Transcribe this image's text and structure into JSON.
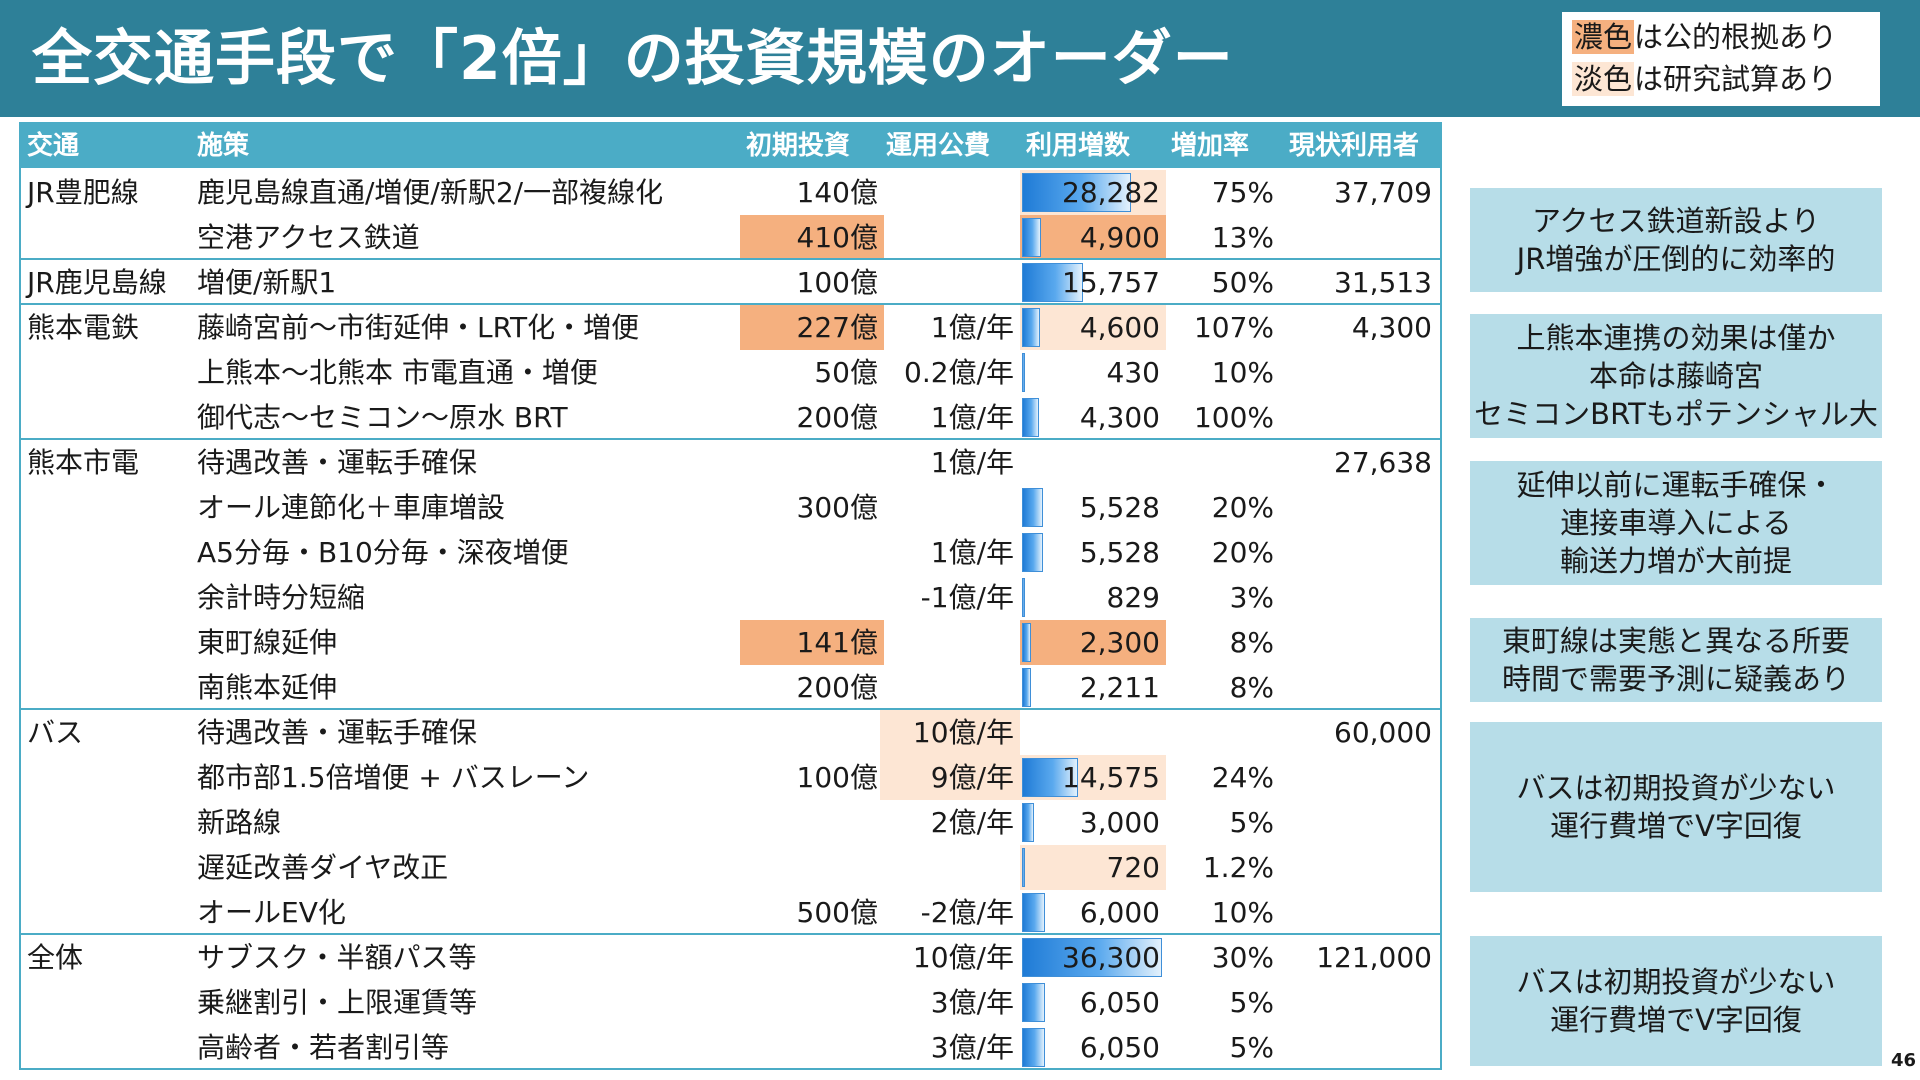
{
  "header": {
    "title": "全交通手段で「2倍」の投資規模のオーダー"
  },
  "legend": {
    "line1_key": "濃色",
    "line1_text": "は公的根拠あり",
    "line2_key": "淡色",
    "line2_text": "は研究試算あり"
  },
  "table": {
    "columns": {
      "mode": "交通",
      "policy": "施策",
      "initial": "初期投資",
      "operating": "運用公費",
      "users": "利用増数",
      "rate": "増加率",
      "current": "現状利用者"
    },
    "rows": [
      {
        "mode": "JR豊肥線",
        "policy": "鹿児島線直通/増便/新駅2/一部複線化",
        "initial": "140億",
        "operating": "",
        "users": "28,282",
        "users_value": 28282,
        "rate": "75%",
        "current": "37,709"
      },
      {
        "mode": "",
        "policy": "空港アクセス鉄道",
        "initial": "410億",
        "operating": "",
        "users": "4,900",
        "users_value": 4900,
        "rate": "13%",
        "current": ""
      },
      {
        "mode": "JR鹿児島線",
        "policy": "増便/新駅1",
        "initial": "100億",
        "operating": "",
        "users": "15,757",
        "users_value": 15757,
        "rate": "50%",
        "current": "31,513"
      },
      {
        "mode": "熊本電鉄",
        "policy": "藤崎宮前～市街延伸・LRT化・増便",
        "initial": "227億",
        "operating": "1億/年",
        "users": "4,600",
        "users_value": 4600,
        "rate": "107%",
        "current": "4,300"
      },
      {
        "mode": "",
        "policy": "上熊本～北熊本 市電直通・増便",
        "initial": "50億",
        "operating": "0.2億/年",
        "users": "430",
        "users_value": 430,
        "rate": "10%",
        "current": ""
      },
      {
        "mode": "",
        "policy": "御代志～セミコン～原水 BRT",
        "initial": "200億",
        "operating": "1億/年",
        "users": "4,300",
        "users_value": 4300,
        "rate": "100%",
        "current": ""
      },
      {
        "mode": "熊本市電",
        "policy": "待遇改善・運転手確保",
        "initial": "",
        "operating": "1億/年",
        "users": "",
        "users_value": 0,
        "rate": "",
        "current": "27,638"
      },
      {
        "mode": "",
        "policy": "オール連節化＋車庫増設",
        "initial": "300億",
        "operating": "",
        "users": "5,528",
        "users_value": 5528,
        "rate": "20%",
        "current": ""
      },
      {
        "mode": "",
        "policy": "A5分毎・B10分毎・深夜増便",
        "initial": "",
        "operating": "1億/年",
        "users": "5,528",
        "users_value": 5528,
        "rate": "20%",
        "current": ""
      },
      {
        "mode": "",
        "policy": "余計時分短縮",
        "initial": "",
        "operating": "-1億/年",
        "users": "829",
        "users_value": 829,
        "rate": "3%",
        "current": ""
      },
      {
        "mode": "",
        "policy": "東町線延伸",
        "initial": "141億",
        "operating": "",
        "users": "2,300",
        "users_value": 2300,
        "rate": "8%",
        "current": ""
      },
      {
        "mode": "",
        "policy": "南熊本延伸",
        "initial": "200億",
        "operating": "",
        "users": "2,211",
        "users_value": 2211,
        "rate": "8%",
        "current": ""
      },
      {
        "mode": "バス",
        "policy": "待遇改善・運転手確保",
        "initial": "",
        "operating": "10億/年",
        "users": "",
        "users_value": 0,
        "rate": "",
        "current": "60,000"
      },
      {
        "mode": "",
        "policy": "都市部1.5倍増便 + バスレーン",
        "initial": "100億",
        "operating": "9億/年",
        "users": "14,575",
        "users_value": 14575,
        "rate": "24%",
        "current": ""
      },
      {
        "mode": "",
        "policy": "新路線",
        "initial": "",
        "operating": "2億/年",
        "users": "3,000",
        "users_value": 3000,
        "rate": "5%",
        "current": ""
      },
      {
        "mode": "",
        "policy": "遅延改善ダイヤ改正",
        "initial": "",
        "operating": "",
        "users": "720",
        "users_value": 720,
        "rate": "1.2%",
        "current": ""
      },
      {
        "mode": "",
        "policy": "オールEV化",
        "initial": "500億",
        "operating": "-2億/年",
        "users": "6,000",
        "users_value": 6000,
        "rate": "10%",
        "current": ""
      },
      {
        "mode": "全体",
        "policy": "サブスク・半額パス等",
        "initial": "",
        "operating": "10億/年",
        "users": "36,300",
        "users_value": 36300,
        "rate": "30%",
        "current": "121,000"
      },
      {
        "mode": "",
        "policy": "乗継割引・上限運賃等",
        "initial": "",
        "operating": "3億/年",
        "users": "6,050",
        "users_value": 6050,
        "rate": "5%",
        "current": ""
      },
      {
        "mode": "",
        "policy": "高齢者・若者割引等",
        "initial": "",
        "operating": "3億/年",
        "users": "6,050",
        "users_value": 6050,
        "rate": "5%",
        "current": ""
      }
    ],
    "bar_max_value": 36300
  },
  "notes": [
    {
      "lines": [
        "アクセス鉄道新設より",
        "JR増強が圧倒的に効率的"
      ]
    },
    {
      "lines": [
        "上熊本連携の効果は僅か",
        "本命は藤崎宮",
        "セミコンBRTもポテンシャル大"
      ]
    },
    {
      "lines": [
        "延伸以前に運転手確保・",
        "連接車導入による",
        "輸送力増が大前提"
      ]
    },
    {
      "lines": [
        "東町線は実態と異なる所要",
        "時間で需要予測に疑義あり"
      ]
    },
    {
      "lines": [
        "バスは初期投資が少ない",
        "運行費増でV字回復"
      ]
    },
    {
      "lines": [
        "バスは初期投資が少ない",
        "運行費増でV字回復"
      ]
    }
  ],
  "page_number": "46",
  "colors": {
    "title_bar": "#2e8098",
    "table_header": "#4bacc6",
    "highlight_dark": "#f5b07f",
    "highlight_light": "#fde6d4",
    "note_box": "#b7dde8",
    "bar": "#1f7bd6"
  }
}
